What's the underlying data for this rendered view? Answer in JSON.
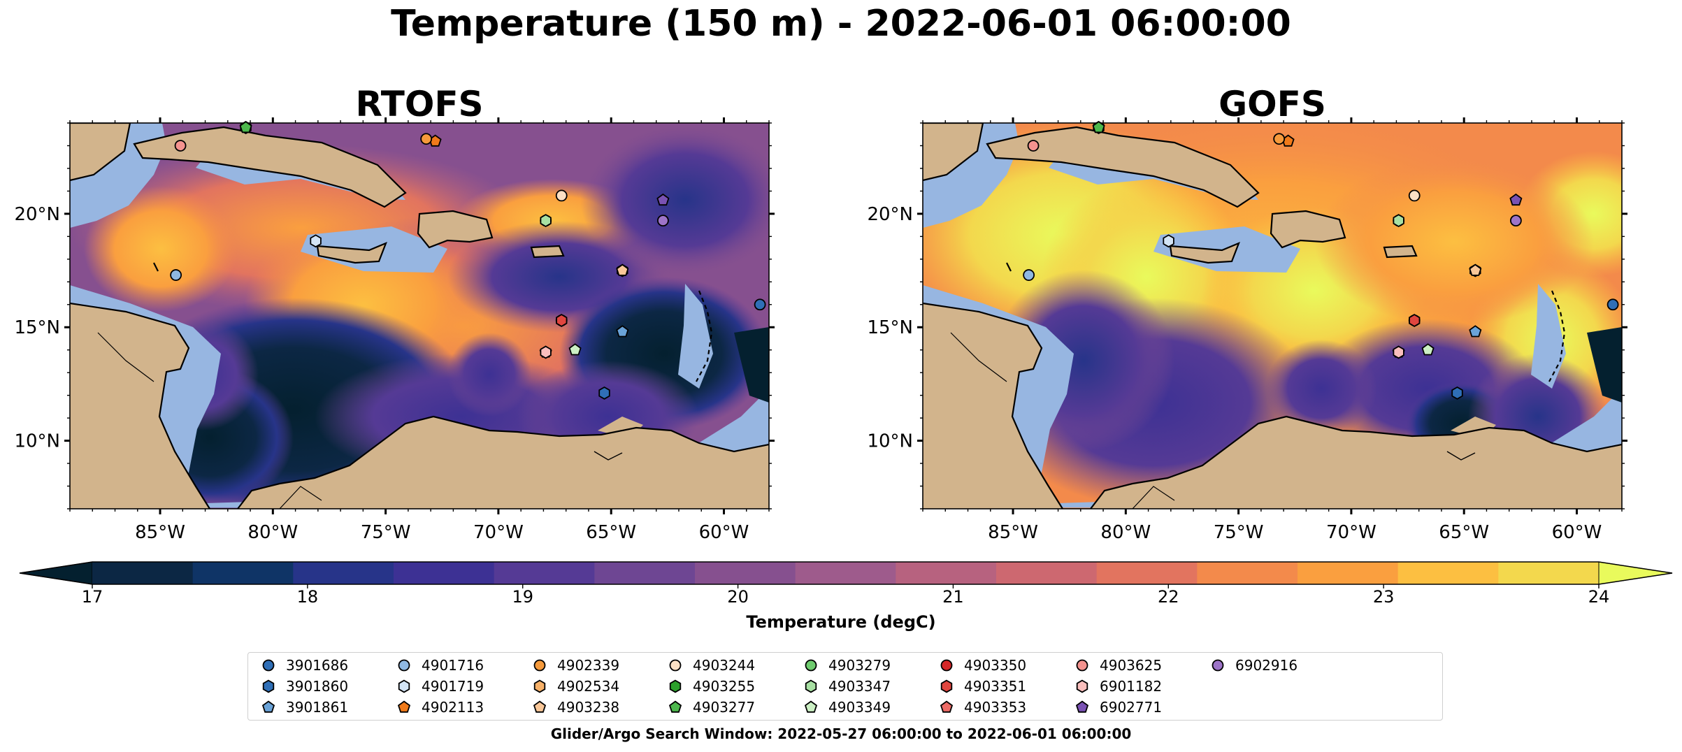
{
  "title": "Temperature (150 m) - 2022-06-01 06:00:00",
  "panels": [
    {
      "title": "RTOFS",
      "variant": "rtofs"
    },
    {
      "title": "GOFS",
      "variant": "gofs"
    }
  ],
  "map": {
    "lon_range": [
      -89,
      -58
    ],
    "lat_range": [
      7,
      24
    ],
    "lon_ticks": [
      {
        "value": -85,
        "label": "85°W"
      },
      {
        "value": -80,
        "label": "80°W"
      },
      {
        "value": -75,
        "label": "75°W"
      },
      {
        "value": -70,
        "label": "70°W"
      },
      {
        "value": -65,
        "label": "65°W"
      },
      {
        "value": -60,
        "label": "60°W"
      }
    ],
    "lat_ticks": [
      {
        "value": 20,
        "label": "20°N"
      },
      {
        "value": 15,
        "label": "15°N"
      },
      {
        "value": 10,
        "label": "10°N"
      }
    ],
    "colors": {
      "land": "#d2b48c",
      "shelf": "#97b6e1",
      "deep": "#04202f"
    }
  },
  "colorbar": {
    "label": "Temperature (degC)",
    "range": [
      17,
      24
    ],
    "ticks": [
      "17",
      "18",
      "19",
      "20",
      "21",
      "22",
      "23",
      "24"
    ],
    "colors": [
      "#0c2744",
      "#0f3466",
      "#273489",
      "#3d3194",
      "#553a95",
      "#6e4693",
      "#86508f",
      "#9e5b8c",
      "#b7627f",
      "#cd6870",
      "#e2745f",
      "#f38a4b",
      "#fa9f3f",
      "#fcbf41",
      "#f3d84d"
    ],
    "under_color": "#04202f",
    "over_color": "#e9fa5c"
  },
  "legend": {
    "items": [
      {
        "id": "3901686",
        "marker": "circle",
        "color": "#2f6fb7"
      },
      {
        "id": "3901860",
        "marker": "hexagon",
        "color": "#2f6fb7"
      },
      {
        "id": "3901861",
        "marker": "pentagon",
        "color": "#6aa3d8"
      },
      {
        "id": "4901716",
        "marker": "circle",
        "color": "#8fb8e2"
      },
      {
        "id": "4901719",
        "marker": "hexagon",
        "color": "#d3e4f5"
      },
      {
        "id": "4902113",
        "marker": "pentagon",
        "color": "#f07a1a"
      },
      {
        "id": "4902339",
        "marker": "circle",
        "color": "#f59a3c"
      },
      {
        "id": "4902534",
        "marker": "hexagon",
        "color": "#f7b169"
      },
      {
        "id": "4903238",
        "marker": "pentagon",
        "color": "#f9c798"
      },
      {
        "id": "4903244",
        "marker": "circle",
        "color": "#fbe0c5"
      },
      {
        "id": "4903255",
        "marker": "hexagon",
        "color": "#2ca02c"
      },
      {
        "id": "4903277",
        "marker": "pentagon",
        "color": "#4db84d"
      },
      {
        "id": "4903279",
        "marker": "circle",
        "color": "#6fcc6f"
      },
      {
        "id": "4903347",
        "marker": "hexagon",
        "color": "#a8e0a3"
      },
      {
        "id": "4903349",
        "marker": "pentagon",
        "color": "#ccf0c4"
      },
      {
        "id": "4903350",
        "marker": "circle",
        "color": "#d62728"
      },
      {
        "id": "4903351",
        "marker": "hexagon",
        "color": "#e0463f"
      },
      {
        "id": "4903353",
        "marker": "pentagon",
        "color": "#ec6b66"
      },
      {
        "id": "4903625",
        "marker": "circle",
        "color": "#f4938f"
      },
      {
        "id": "6901182",
        "marker": "hexagon",
        "color": "#fabfbd"
      },
      {
        "id": "6902771",
        "marker": "pentagon",
        "color": "#7a52b3"
      },
      {
        "id": "6902916",
        "marker": "circle",
        "color": "#9d74c8"
      }
    ]
  },
  "floats": [
    {
      "id": "3901686",
      "lon": -58.4,
      "lat": 16.0
    },
    {
      "id": "3901860",
      "lon": -65.3,
      "lat": 12.1
    },
    {
      "id": "3901861",
      "lon": -64.5,
      "lat": 14.8
    },
    {
      "id": "4901716",
      "lon": -84.3,
      "lat": 17.3
    },
    {
      "id": "4901719",
      "lon": -78.1,
      "lat": 18.8
    },
    {
      "id": "4902113",
      "lon": -72.8,
      "lat": 23.2
    },
    {
      "id": "4902339",
      "lon": -73.2,
      "lat": 23.3
    },
    {
      "id": "4902534",
      "lon": -64.5,
      "lat": 17.5
    },
    {
      "id": "4903238",
      "lon": -64.5,
      "lat": 17.5
    },
    {
      "id": "4903244",
      "lon": -67.2,
      "lat": 20.8
    },
    {
      "id": "4903255",
      "lon": -81.2,
      "lat": 23.8
    },
    {
      "id": "4903277",
      "lon": -81.2,
      "lat": 23.8
    },
    {
      "id": "4903279",
      "lon": -67.9,
      "lat": 19.7
    },
    {
      "id": "4903347",
      "lon": -67.9,
      "lat": 19.7
    },
    {
      "id": "4903349",
      "lon": -66.6,
      "lat": 14.0
    },
    {
      "id": "4903350",
      "lon": -67.2,
      "lat": 15.3
    },
    {
      "id": "4903351",
      "lon": -67.2,
      "lat": 15.3
    },
    {
      "id": "4903353",
      "lon": -67.9,
      "lat": 13.9
    },
    {
      "id": "4903625",
      "lon": -84.1,
      "lat": 23.0
    },
    {
      "id": "6901182",
      "lon": -67.9,
      "lat": 13.9
    },
    {
      "id": "6902771",
      "lon": -62.7,
      "lat": 20.6
    },
    {
      "id": "6902916",
      "lon": -62.7,
      "lat": 19.7
    }
  ],
  "search_window": "Glider/Argo Search Window: 2022-05-27 06:00:00 to 2022-06-01 06:00:00"
}
